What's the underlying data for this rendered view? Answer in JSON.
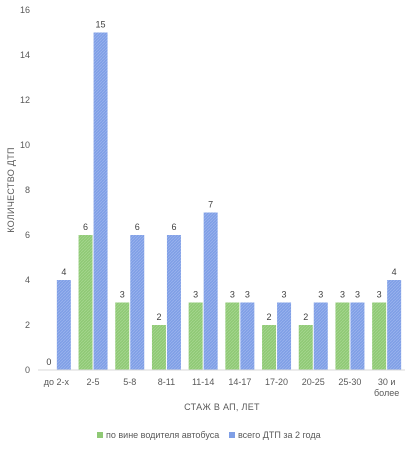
{
  "chart_data": {
    "type": "bar",
    "title": "",
    "xlabel": "СТАЖ В АП, ЛЕТ",
    "ylabel": "КОЛИЧЕСТВО ДТП",
    "ylim": [
      0,
      16
    ],
    "yticks": [
      0,
      2,
      4,
      6,
      8,
      10,
      12,
      14,
      16
    ],
    "categories": [
      [
        "до 2-х"
      ],
      [
        "2-5"
      ],
      [
        "5-8"
      ],
      [
        "8-11"
      ],
      [
        "11-14"
      ],
      [
        "14-17"
      ],
      [
        "17-20"
      ],
      [
        "20-25"
      ],
      [
        "25-30"
      ],
      [
        "30 и",
        "более"
      ]
    ],
    "series": [
      {
        "name": "по вине водителя автобуса",
        "color": "#8fc975",
        "values": [
          0,
          6,
          3,
          2,
          3,
          3,
          2,
          2,
          3,
          3
        ]
      },
      {
        "name": "всего ДТП за 2 года",
        "color": "#7f9fe6",
        "values": [
          4,
          15,
          6,
          6,
          7,
          3,
          3,
          3,
          3,
          4
        ]
      }
    ],
    "grid": false,
    "legend_position": "bottom"
  }
}
